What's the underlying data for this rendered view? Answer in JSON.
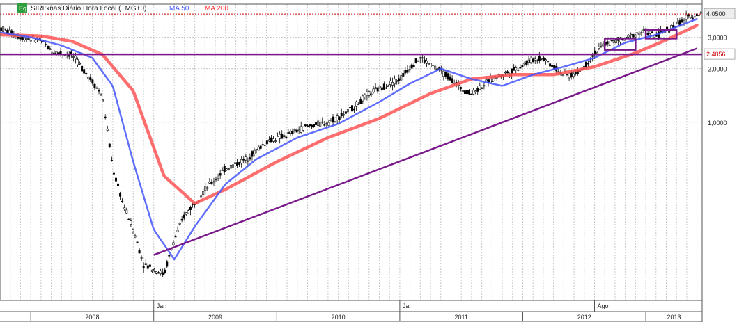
{
  "header": {
    "eq_badge": "Eq",
    "symbol_label": "SIRI:xnas Diário Hora Local (TMG+0)",
    "ma50_label": "MA 50",
    "ma200_label": "MA 200"
  },
  "colors": {
    "background": "#ffffff",
    "grid": "#c8c8c8",
    "candle": "#000000",
    "ma50": "#4455ff",
    "ma200": "#ff5555",
    "trend": "#7a1a8a",
    "resistance": "#7a1a8a",
    "box": "#7a1a8a",
    "last_price_line": "#cc0000"
  },
  "chart_data": {
    "type": "line",
    "scale": "log",
    "title": "SIRI:xnas Diário Hora Local (TMG+0)",
    "xlabel": "",
    "ylabel": "",
    "ylim": [
      0.1,
      4.6
    ],
    "y_ticks": [
      "1,0000",
      "2,0000",
      "3,0000"
    ],
    "price_label": "4,0500",
    "level_label": "2,4056",
    "month_ticks": [
      "Jan",
      "Jan",
      "Ago"
    ],
    "year_ticks": [
      "2008",
      "2009",
      "2010",
      "2011",
      "2012",
      "2013"
    ],
    "series": [
      {
        "name": "SIRI",
        "x": [
          "2007-10",
          "2007-12",
          "2008-02",
          "2008-03",
          "2008-05",
          "2008-07",
          "2008-08",
          "2008-09",
          "2008-10",
          "2008-11",
          "2008-12",
          "2009-01",
          "2009-02",
          "2009-03",
          "2009-04",
          "2009-06",
          "2009-08",
          "2009-10",
          "2009-12",
          "2010-02",
          "2010-04",
          "2010-06",
          "2010-08",
          "2010-10",
          "2010-12",
          "2011-01",
          "2011-02",
          "2011-03",
          "2011-04",
          "2011-05",
          "2011-06",
          "2011-07",
          "2011-08",
          "2011-09",
          "2011-10",
          "2011-11",
          "2011-12",
          "2012-01",
          "2012-02",
          "2012-03",
          "2012-04",
          "2012-05",
          "2012-06",
          "2012-07",
          "2012-08",
          "2012-09",
          "2012-10",
          "2012-11",
          "2012-12",
          "2013-01",
          "2013-02",
          "2013-03",
          "2013-04",
          "2013-05",
          "2013-06"
        ],
        "y": [
          3.4,
          3.0,
          2.9,
          2.5,
          2.4,
          1.7,
          1.4,
          0.55,
          0.35,
          0.25,
          0.16,
          0.15,
          0.14,
          0.22,
          0.3,
          0.42,
          0.55,
          0.62,
          0.78,
          0.85,
          0.95,
          1.0,
          1.15,
          1.45,
          1.65,
          1.75,
          2.05,
          2.3,
          2.1,
          1.95,
          1.75,
          1.55,
          1.45,
          1.6,
          1.75,
          1.85,
          1.95,
          2.1,
          2.25,
          2.3,
          2.05,
          1.85,
          1.85,
          2.05,
          2.45,
          2.75,
          2.85,
          2.95,
          3.15,
          3.25,
          3.05,
          3.3,
          3.5,
          3.85,
          4.05
        ]
      },
      {
        "name": "MA 50",
        "x": [
          "2007-10",
          "2008-01",
          "2008-04",
          "2008-07",
          "2008-09",
          "2008-11",
          "2009-01",
          "2009-03",
          "2009-05",
          "2009-08",
          "2009-11",
          "2010-03",
          "2010-07",
          "2010-11",
          "2011-02",
          "2011-05",
          "2011-08",
          "2011-11",
          "2012-02",
          "2012-05",
          "2012-08",
          "2012-11",
          "2013-02",
          "2013-06"
        ],
        "y": [
          3.2,
          3.0,
          2.7,
          2.3,
          1.6,
          0.6,
          0.25,
          0.17,
          0.26,
          0.45,
          0.62,
          0.82,
          0.98,
          1.3,
          1.65,
          2.0,
          1.75,
          1.6,
          1.85,
          2.05,
          2.3,
          2.8,
          3.1,
          3.8
        ]
      },
      {
        "name": "MA 200",
        "x": [
          "2007-10",
          "2008-02",
          "2008-05",
          "2008-08",
          "2008-11",
          "2009-02",
          "2009-05",
          "2009-08",
          "2010-01",
          "2010-06",
          "2010-11",
          "2011-04",
          "2011-08",
          "2011-12",
          "2012-04",
          "2012-08",
          "2012-12",
          "2013-03",
          "2013-06"
        ],
        "y": [
          3.1,
          3.05,
          2.85,
          2.4,
          1.5,
          0.5,
          0.35,
          0.42,
          0.6,
          0.82,
          1.05,
          1.45,
          1.75,
          1.85,
          1.85,
          2.05,
          2.45,
          2.9,
          3.5
        ]
      }
    ],
    "annotations": {
      "horizontal_level": 2.4056,
      "trendline": [
        {
          "x": "2009-01",
          "y": 0.18
        },
        {
          "x": "2013-06",
          "y": 2.6
        }
      ],
      "boxes": [
        {
          "x0": "2012-09",
          "x1": "2012-12",
          "y0": 2.55,
          "y1": 2.95
        },
        {
          "x0": "2013-01",
          "x1": "2013-04",
          "y0": 2.95,
          "y1": 3.3
        }
      ]
    }
  }
}
